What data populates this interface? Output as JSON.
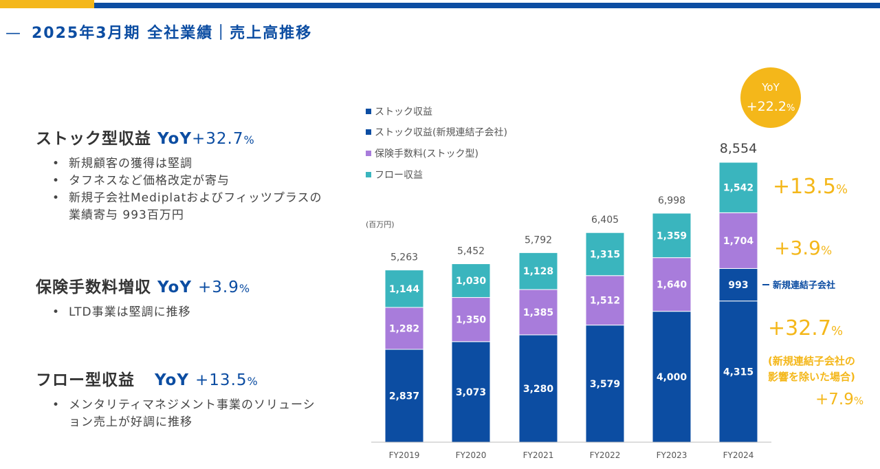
{
  "page": {
    "title": "2025年3月期 全社業績｜売上高推移",
    "title_dash": "—"
  },
  "sections": [
    {
      "heading": "ストック型収益",
      "yoy": "YoY",
      "pct": "+32.7",
      "pct_unit": "%",
      "bullets": [
        "新規顧客の獲得は堅調",
        "タフネスなど価格改定が寄与",
        "新規子会社Mediplatおよびフィッツプラスの業績寄与 993百万円"
      ]
    },
    {
      "heading": "保険手数料増収",
      "yoy": "YoY",
      "pct": "+3.9",
      "pct_unit": "%",
      "bullets": [
        "LTD事業は堅調に推移"
      ]
    },
    {
      "heading": "フロー型収益",
      "yoy": "YoY",
      "pct": "+13.5",
      "pct_unit": "%",
      "bullets": [
        "メンタリティマネジメント事業のソリューション売上が好調に推移"
      ]
    }
  ],
  "chart_data": {
    "type": "bar",
    "stacked": true,
    "unit_label": "(百万円)",
    "categories": [
      "FY2019",
      "FY2020",
      "FY2021",
      "FY2022",
      "FY2023",
      "FY2024"
    ],
    "series": [
      {
        "name": "ストック収益",
        "color": "#0c4da2",
        "values": [
          2837,
          3073,
          3280,
          3579,
          4000,
          4315
        ],
        "labels": [
          "2,837",
          "3,073",
          "3,280",
          "3,579",
          "4,000",
          "4,315"
        ]
      },
      {
        "name": "ストック収益(新規連結子会社)",
        "color": "#0c4da2",
        "values": [
          0,
          0,
          0,
          0,
          0,
          993
        ],
        "labels": [
          "",
          "",
          "",
          "",
          "",
          "993"
        ]
      },
      {
        "name": "保険手数料(ストック型)",
        "color": "#a87cdb",
        "values": [
          1282,
          1350,
          1385,
          1512,
          1640,
          1704
        ],
        "labels": [
          "1,282",
          "1,350",
          "1,385",
          "1,512",
          "1,640",
          "1,704"
        ]
      },
      {
        "name": "フロー収益",
        "color": "#3ab5be",
        "values": [
          1144,
          1030,
          1128,
          1315,
          1359,
          1542
        ],
        "labels": [
          "1,144",
          "1,030",
          "1,128",
          "1,315",
          "1,359",
          "1,542"
        ]
      }
    ],
    "totals": [
      5263,
      5452,
      5792,
      6405,
      6998,
      8554
    ],
    "total_labels": [
      "5,263",
      "5,452",
      "5,792",
      "6,405",
      "6,998",
      "8,554"
    ],
    "ylim": [
      0,
      8554
    ],
    "annotations": {
      "yoy_bubble_title": "YoY",
      "yoy_bubble_value": "+22.2",
      "yoy_bubble_unit": "%",
      "flow_growth": "+13.5",
      "insurance_growth": "+3.9",
      "stock_growth": "+32.7",
      "pct_unit": "%",
      "new_sub_label": "新規連結子会社",
      "excl_note_line1": "(新規連結子会社の",
      "excl_note_line2": "影響を除いた場合)",
      "excl_growth": "+7.9"
    },
    "colors": {
      "accent_yellow": "#f4b71a",
      "brand_blue": "#0c4da2",
      "axis": "#bbbbbb"
    }
  }
}
